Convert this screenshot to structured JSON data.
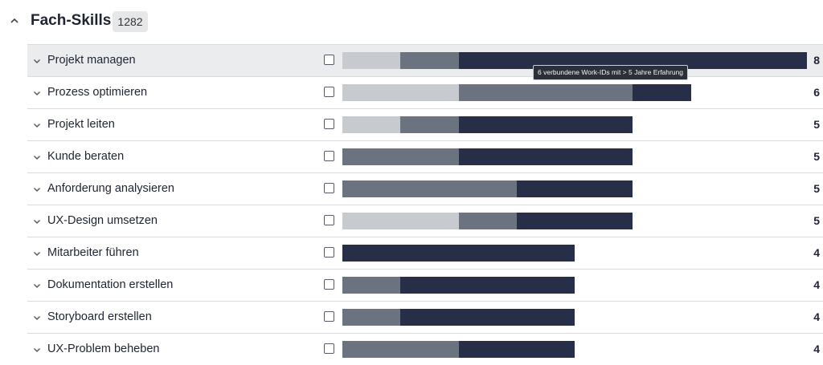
{
  "section": {
    "title": "Fach-Skills",
    "count": "1282"
  },
  "tooltip": {
    "text": "6 verbundene Work-IDs mit > 5 Jahre Erfahrung"
  },
  "colors": {
    "light": "#c7cacf",
    "mid": "#6b7280",
    "dark": "#262f47"
  },
  "skills": [
    {
      "label": "Projekt managen",
      "value": "8",
      "light": 1,
      "mid": 1,
      "dark": 6
    },
    {
      "label": "Prozess optimieren",
      "value": "6",
      "light": 2,
      "mid": 3,
      "dark": 1
    },
    {
      "label": "Projekt leiten",
      "value": "5",
      "light": 1,
      "mid": 1,
      "dark": 3
    },
    {
      "label": "Kunde beraten",
      "value": "5",
      "light": 0,
      "mid": 2,
      "dark": 3
    },
    {
      "label": "Anforderung analysieren",
      "value": "5",
      "light": 0,
      "mid": 3,
      "dark": 2
    },
    {
      "label": "UX-Design umsetzen",
      "value": "5",
      "light": 2,
      "mid": 1,
      "dark": 2
    },
    {
      "label": "Mitarbeiter führen",
      "value": "4",
      "light": 0,
      "mid": 0,
      "dark": 4
    },
    {
      "label": "Dokumentation erstellen",
      "value": "4",
      "light": 0,
      "mid": 1,
      "dark": 3
    },
    {
      "label": "Storyboard erstellen",
      "value": "4",
      "light": 0,
      "mid": 1,
      "dark": 3
    },
    {
      "label": "UX-Problem beheben",
      "value": "4",
      "light": 0,
      "mid": 2,
      "dark": 2
    }
  ]
}
